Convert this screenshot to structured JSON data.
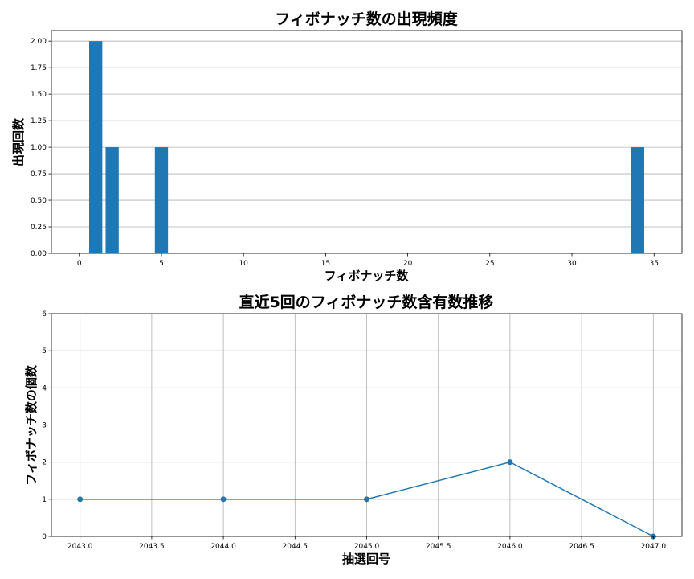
{
  "chart_data": [
    {
      "type": "bar",
      "title": "フィボナッチ数の出現頻度",
      "xlabel": "フィボナッチ数",
      "ylabel": "出現回数",
      "x": [
        1,
        2,
        5,
        34
      ],
      "values": [
        2,
        1,
        1,
        1
      ],
      "xlim": [
        -1.7,
        36.7
      ],
      "ylim": [
        0,
        2.1
      ],
      "xticks": [
        0,
        5,
        10,
        15,
        20,
        25,
        30,
        35
      ],
      "xtick_labels": [
        "0",
        "5",
        "10",
        "15",
        "20",
        "25",
        "30",
        "35"
      ],
      "yticks": [
        0,
        0.25,
        0.5,
        0.75,
        1.0,
        1.25,
        1.5,
        1.75,
        2.0
      ],
      "ytick_labels": [
        "0.00",
        "0.25",
        "0.50",
        "0.75",
        "1.00",
        "1.25",
        "1.50",
        "1.75",
        "2.00"
      ],
      "grid": "y",
      "color": "#1f77b4"
    },
    {
      "type": "line",
      "title": "直近5回のフィボナッチ数含有数推移",
      "xlabel": "抽選回号",
      "ylabel": "フィボナッチ数の個数",
      "x": [
        2043,
        2044,
        2045,
        2046,
        2047
      ],
      "values": [
        1,
        1,
        1,
        2,
        0
      ],
      "xlim": [
        2042.8,
        2047.2
      ],
      "ylim": [
        0,
        6
      ],
      "xticks": [
        2043.0,
        2043.5,
        2044.0,
        2044.5,
        2045.0,
        2045.5,
        2046.0,
        2046.5,
        2047.0
      ],
      "xtick_labels": [
        "2043.0",
        "2043.5",
        "2044.0",
        "2044.5",
        "2045.0",
        "2045.5",
        "2046.0",
        "2046.5",
        "2047.0"
      ],
      "yticks": [
        0,
        1,
        2,
        3,
        4,
        5,
        6
      ],
      "ytick_labels": [
        "0",
        "1",
        "2",
        "3",
        "4",
        "5",
        "6"
      ],
      "grid": "both",
      "marker": "o",
      "color": "#1f77b4"
    }
  ]
}
